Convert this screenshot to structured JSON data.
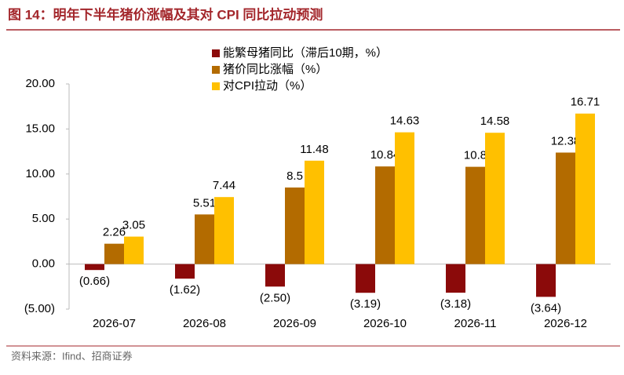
{
  "chart_data": {
    "type": "bar",
    "title": "图 14：明年下半年猪价涨幅及其对 CPI 同比拉动预测",
    "source": "资料来源：Ifind、招商证券",
    "categories": [
      "2026-07",
      "2026-08",
      "2026-09",
      "2026-10",
      "2026-11",
      "2026-12"
    ],
    "series": [
      {
        "name": "能繁母猪同比（滞后10期，%）",
        "color": "#8b0a0a",
        "values": [
          -0.66,
          -1.62,
          -2.5,
          -3.19,
          -3.18,
          -3.64
        ],
        "value_labels": [
          "(0.66)",
          "(1.62)",
          "(2.50)",
          "(3.19)",
          "(3.18)",
          "(3.64)"
        ]
      },
      {
        "name": "猪价同比涨幅（%）",
        "color": "#b36b00",
        "values": [
          2.26,
          5.51,
          8.5,
          10.84,
          10.8,
          12.38
        ]
      },
      {
        "name": "对CPI拉动（%）",
        "color": "#ffc000",
        "values": [
          3.05,
          7.44,
          11.48,
          14.63,
          14.58,
          16.71
        ]
      }
    ],
    "ylim": [
      -5,
      20
    ],
    "yticks": [
      {
        "value": -5,
        "label": "(5.00)"
      },
      {
        "value": 0,
        "label": "0.00"
      },
      {
        "value": 5,
        "label": "5.00"
      },
      {
        "value": 10,
        "label": "10.00"
      },
      {
        "value": 15,
        "label": "15.00"
      },
      {
        "value": 20,
        "label": "20.00"
      }
    ],
    "negative_label_color": "#e00000"
  }
}
